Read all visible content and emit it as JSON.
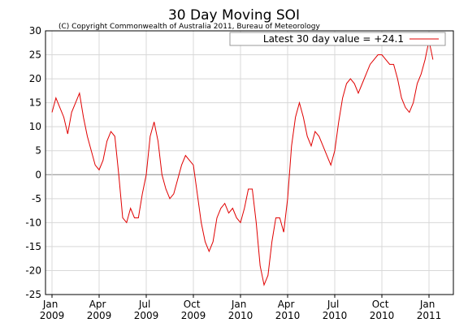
{
  "chart_data": {
    "type": "line",
    "title": "30 Day Moving SOI",
    "subtitle": "(C) Copyright Commonwealth of Australia 2011, Bureau of Meteorology",
    "categories": [
      "Jan 2009",
      null,
      null,
      null,
      null,
      null,
      null,
      null,
      null,
      null,
      null,
      null,
      "Apr 2009",
      null,
      null,
      null,
      null,
      null,
      null,
      null,
      null,
      null,
      null,
      null,
      "Jul 2009",
      null,
      null,
      null,
      null,
      null,
      null,
      null,
      null,
      null,
      null,
      null,
      "Oct 2009",
      null,
      null,
      null,
      null,
      null,
      null,
      null,
      null,
      null,
      null,
      null,
      "Jan 2010",
      null,
      null,
      null,
      null,
      null,
      null,
      null,
      null,
      null,
      null,
      null,
      "Apr 2010",
      null,
      null,
      null,
      null,
      null,
      null,
      null,
      null,
      null,
      null,
      null,
      "Jul 2010",
      null,
      null,
      null,
      null,
      null,
      null,
      null,
      null,
      null,
      null,
      null,
      "Oct 2010",
      null,
      null,
      null,
      null,
      null,
      null,
      null,
      null,
      null,
      null,
      null,
      "Jan 2011",
      null
    ],
    "series": [
      {
        "name": "Latest 30 day value = +24.1",
        "color": "#e00000",
        "values": [
          13,
          16,
          14,
          12,
          8.5,
          13,
          15,
          17,
          12,
          8,
          5,
          2,
          1,
          3,
          7,
          9,
          8,
          0,
          -9,
          -10,
          -7,
          -9,
          -9,
          -4,
          0,
          8,
          11,
          7,
          0,
          -3,
          -5,
          -4,
          -1,
          2,
          4,
          3,
          2,
          -4,
          -10,
          -14,
          -16,
          -14,
          -9,
          -7,
          -6,
          -8,
          -7,
          -9,
          -10,
          -7,
          -3,
          -3,
          -10,
          -19,
          -23,
          -21,
          -14,
          -9,
          -9,
          -12,
          -5,
          6,
          12,
          15,
          12,
          8,
          6,
          9,
          8,
          6,
          4,
          2,
          5,
          11,
          16,
          19,
          20,
          19,
          17,
          19,
          21,
          23,
          24,
          25,
          25,
          24,
          23,
          23,
          20,
          16,
          14,
          13,
          15,
          19,
          21,
          24,
          28,
          24
        ]
      }
    ],
    "ylim": [
      -25,
      30
    ],
    "yticks": [
      -25,
      -20,
      -15,
      -10,
      -5,
      0,
      5,
      10,
      15,
      20,
      25,
      30
    ],
    "grid": true,
    "legend": "upper right"
  }
}
